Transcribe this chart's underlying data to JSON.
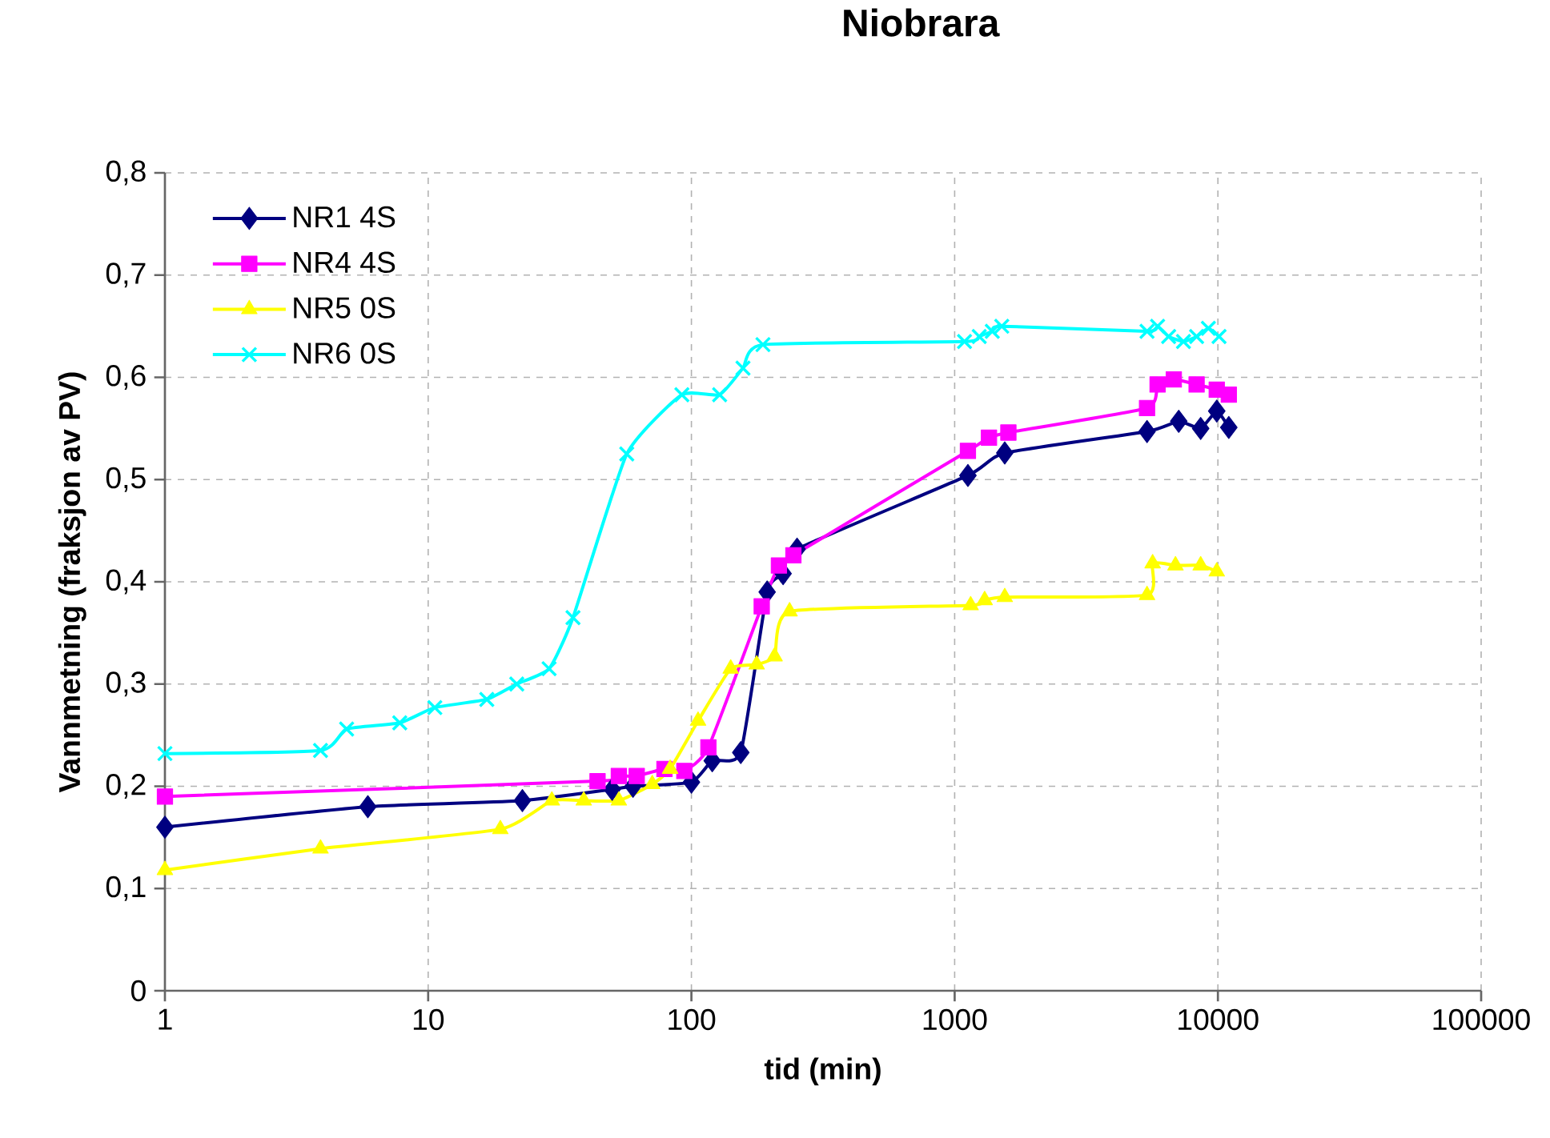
{
  "chart_data": {
    "type": "line",
    "title": "Niobrara",
    "xlabel": "tid (min)",
    "ylabel": "Vannmetning (fraksjon av PV)",
    "log": "x",
    "xlim": [
      1,
      100000
    ],
    "xticks": [
      1,
      10,
      100,
      1000,
      10000,
      100000
    ],
    "ylim": [
      0,
      0.8
    ],
    "yticks": [
      0,
      {
        "value": 0.1,
        "label": "0,1"
      },
      {
        "value": 0.2,
        "label": "0,2"
      },
      {
        "value": 0.3,
        "label": "0,3"
      },
      {
        "value": 0.4,
        "label": "0,4"
      },
      {
        "value": 0.5,
        "label": "0,5"
      },
      {
        "value": 0.6,
        "label": "0,6"
      },
      {
        "value": 0.7,
        "label": "0,7"
      },
      {
        "value": 0.8,
        "label": "0,8"
      }
    ],
    "grid": true,
    "legend": "top left",
    "series": [
      {
        "name": "NR1 4S",
        "color": "#000080",
        "marker": "diamond",
        "x": [
          1,
          5.9,
          22.8,
          50,
          60,
          100,
          120,
          154,
          194,
          223,
          252,
          1123,
          1550,
          5380,
          7100,
          8600,
          9900,
          11000
        ],
        "values": [
          0.16,
          0.18,
          0.186,
          0.197,
          0.2,
          0.204,
          0.225,
          0.233,
          0.39,
          0.408,
          0.432,
          0.504,
          0.526,
          0.547,
          0.557,
          0.55,
          0.567,
          0.551
        ]
      },
      {
        "name": "NR4 4S",
        "color": "#ff00ff",
        "marker": "square",
        "x": [
          1,
          44,
          53,
          62,
          79,
          94,
          116,
          185,
          215,
          244,
          1123,
          1350,
          1600,
          5380,
          5900,
          6800,
          8300,
          9900,
          11000
        ],
        "values": [
          0.19,
          0.205,
          0.21,
          0.21,
          0.217,
          0.215,
          0.238,
          0.376,
          0.416,
          0.426,
          0.528,
          0.541,
          0.546,
          0.57,
          0.593,
          0.598,
          0.593,
          0.588,
          0.583
        ]
      },
      {
        "name": "NR5 0S",
        "color": "#ffff00",
        "marker": "triangle",
        "x": [
          1,
          3.9,
          18.8,
          29.5,
          39,
          53,
          71,
          83,
          106,
          141,
          177,
          207,
          236,
          1150,
          1300,
          1550,
          5380,
          5650,
          6900,
          8600,
          9900
        ],
        "values": [
          0.118,
          0.139,
          0.158,
          0.186,
          0.186,
          0.186,
          0.202,
          0.217,
          0.264,
          0.315,
          0.319,
          0.327,
          0.371,
          0.377,
          0.382,
          0.385,
          0.387,
          0.418,
          0.416,
          0.416,
          0.41
        ]
      },
      {
        "name": "NR6 0S",
        "color": "#00ffff",
        "marker": "cross",
        "x": [
          1,
          3.9,
          4.9,
          7.8,
          10.6,
          16.7,
          21.7,
          28.8,
          35.5,
          56.8,
          92,
          128,
          157,
          187,
          1090,
          1240,
          1390,
          1510,
          5380,
          5900,
          6500,
          7400,
          8300,
          9200,
          10100
        ],
        "values": [
          0.232,
          0.235,
          0.256,
          0.262,
          0.277,
          0.285,
          0.3,
          0.315,
          0.365,
          0.525,
          0.583,
          0.583,
          0.609,
          0.632,
          0.635,
          0.64,
          0.645,
          0.65,
          0.645,
          0.65,
          0.64,
          0.635,
          0.64,
          0.648,
          0.64
        ]
      }
    ]
  }
}
